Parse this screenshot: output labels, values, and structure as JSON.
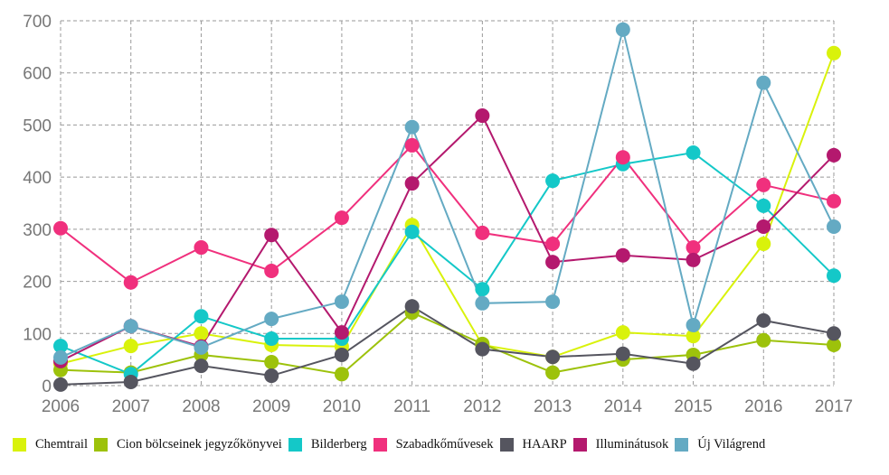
{
  "chart_data": {
    "type": "line",
    "title": "",
    "xlabel": "",
    "ylabel": "",
    "x": [
      "2006",
      "2007",
      "2008",
      "2009",
      "2010",
      "2011",
      "2012",
      "2013",
      "2014",
      "2015",
      "2016",
      "2017"
    ],
    "ylim": [
      0,
      700
    ],
    "yticks": [
      "0",
      "100",
      "200",
      "300",
      "400",
      "500",
      "600",
      "700"
    ],
    "grid": true,
    "legend_position": "bottom",
    "series": [
      {
        "name": "Chemtrail",
        "color": "#d9f20b",
        "values": [
          42,
          76,
          100,
          78,
          75,
          308,
          78,
          55,
          102,
          95,
          272,
          638
        ]
      },
      {
        "name": "Cion bölcseinek jegyzőkönyvei",
        "color": "#9dc20b",
        "values": [
          30,
          25,
          59,
          45,
          22,
          140,
          80,
          25,
          50,
          59,
          87,
          78
        ]
      },
      {
        "name": "Bilderberg",
        "color": "#14c8c8",
        "values": [
          76,
          22,
          133,
          90,
          90,
          295,
          185,
          393,
          425,
          447,
          345,
          211
        ]
      },
      {
        "name": "Szabadkőművesek",
        "color": "#f0307d",
        "values": [
          302,
          198,
          265,
          220,
          322,
          461,
          293,
          272,
          438,
          265,
          385,
          354
        ]
      },
      {
        "name": "HAARP",
        "color": "#55555f",
        "values": [
          2,
          7,
          38,
          19,
          59,
          152,
          70,
          55,
          61,
          42,
          125,
          100
        ]
      },
      {
        "name": "Illuminátusok",
        "color": "#b4196e",
        "values": [
          47,
          114,
          75,
          289,
          102,
          388,
          518,
          237,
          250,
          241,
          305,
          442
        ]
      },
      {
        "name": "Új Világrend",
        "color": "#64aac3",
        "values": [
          54,
          114,
          73,
          128,
          161,
          496,
          158,
          161,
          683,
          116,
          581,
          305
        ]
      }
    ]
  }
}
